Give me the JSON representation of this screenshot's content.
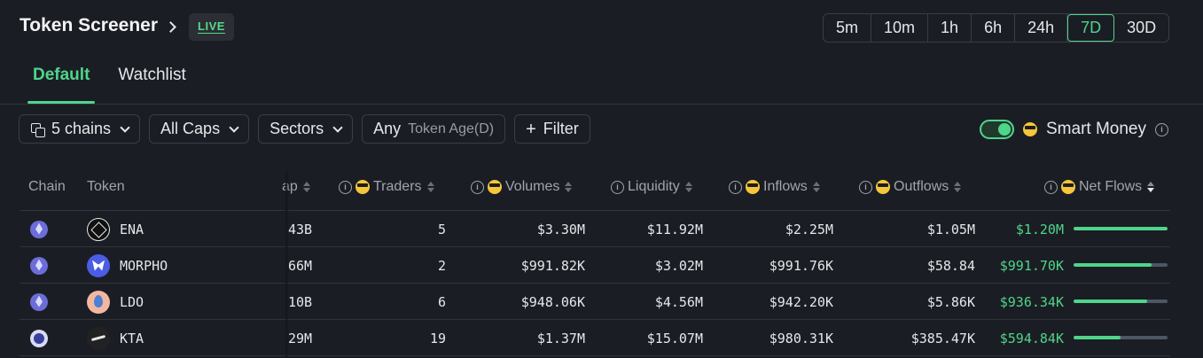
{
  "header": {
    "title": "Token Screener",
    "live_badge": "LIVE",
    "time_ranges": [
      "5m",
      "10m",
      "1h",
      "6h",
      "24h",
      "7D",
      "30D"
    ],
    "active_time_range": "7D"
  },
  "tabs": [
    {
      "label": "Default",
      "active": true
    },
    {
      "label": "Watchlist",
      "active": false
    }
  ],
  "filters": {
    "chains": "5 chains",
    "caps": "All Caps",
    "sectors": "Sectors",
    "token_age_value": "Any",
    "token_age_label": "Token Age(D)",
    "filter": "Filter"
  },
  "smart_money": {
    "label": "Smart Money",
    "enabled": true
  },
  "columns": {
    "chain": "Chain",
    "token": "Token",
    "mcap": "ap",
    "traders": "Traders",
    "volumes": "Volumes",
    "liquidity": "Liquidity",
    "inflows": "Inflows",
    "outflows": "Outflows",
    "net_flows": "Net Flows"
  },
  "rows": [
    {
      "token": "ENA",
      "chain_icon": "ethereum-icon",
      "mcap": "43B",
      "traders": "5",
      "volumes": "$3.30M",
      "liquidity": "$11.92M",
      "inflows": "$2.25M",
      "outflows": "$1.05M",
      "net_flows": "$1.20M",
      "net_flow_fraction": 1.0
    },
    {
      "token": "MORPHO",
      "chain_icon": "ethereum-icon",
      "mcap": "66M",
      "traders": "2",
      "volumes": "$991.82K",
      "liquidity": "$3.02M",
      "inflows": "$991.76K",
      "outflows": "$58.84",
      "net_flows": "$991.70K",
      "net_flow_fraction": 0.83
    },
    {
      "token": "LDO",
      "chain_icon": "ethereum-icon",
      "mcap": "10B",
      "traders": "6",
      "volumes": "$948.06K",
      "liquidity": "$4.56M",
      "inflows": "$942.20K",
      "outflows": "$5.86K",
      "net_flows": "$936.34K",
      "net_flow_fraction": 0.78
    },
    {
      "token": "KTA",
      "chain_icon": "base-chain-icon",
      "mcap": "29M",
      "traders": "19",
      "volumes": "$1.37M",
      "liquidity": "$15.07M",
      "inflows": "$980.31K",
      "outflows": "$385.47K",
      "net_flows": "$594.84K",
      "net_flow_fraction": 0.5
    }
  ],
  "colors": {
    "accent": "#4fd58a",
    "background": "#1b1d24",
    "bar_track": "#4d5665"
  }
}
